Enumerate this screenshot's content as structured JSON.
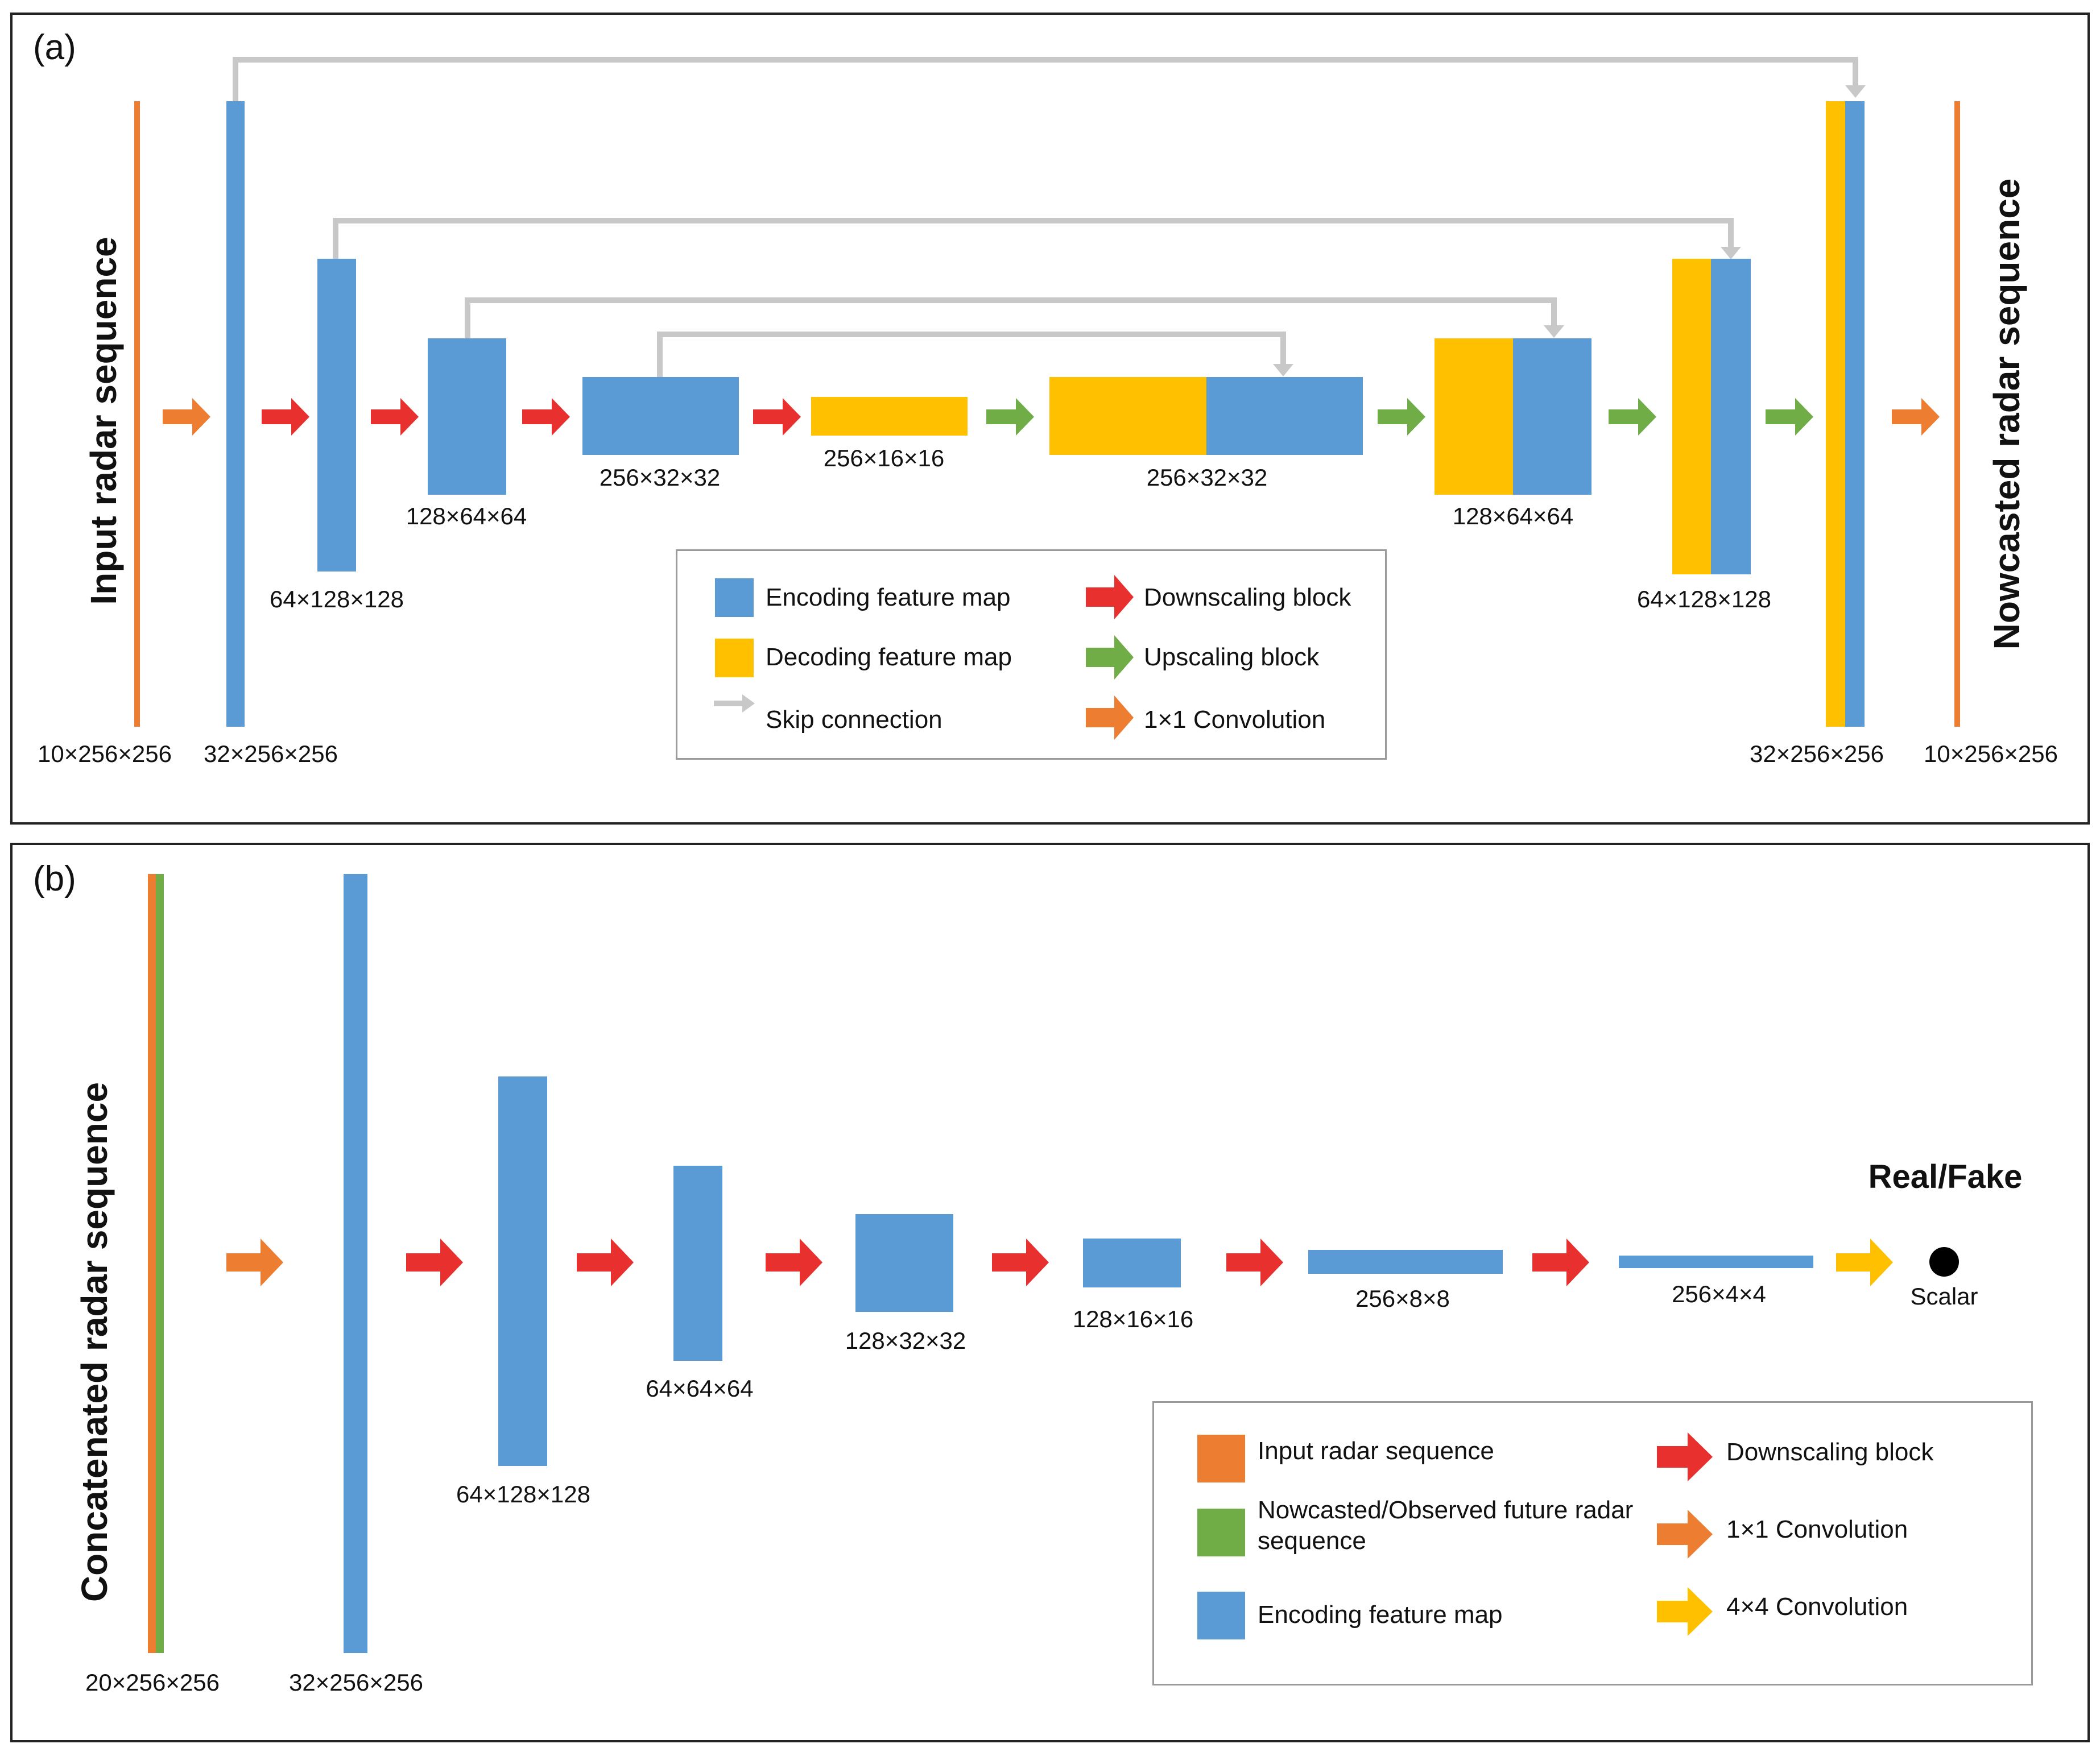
{
  "colors": {
    "encoding": "#5b9bd5",
    "decoding": "#ffc000",
    "conv1x1": "#ed7d31",
    "downscale": "#e8312f",
    "upscale": "#70ad47",
    "skip": "#c8c8c8",
    "conv4x4": "#ffc000",
    "nowcast": "#70ad47"
  },
  "panel_a": {
    "label": "(a)",
    "left_title": "Input radar sequence",
    "right_title": "Nowcasted radar sequence",
    "dims": {
      "input": "10×256×256",
      "enc1": "32×256×256",
      "enc2": "64×128×128",
      "enc3": "128×64×64",
      "enc4": "256×32×32",
      "bottleneck": "256×16×16",
      "dec4": "256×32×32",
      "dec3": "128×64×64",
      "dec2": "64×128×128",
      "dec1": "32×256×256",
      "output": "10×256×256"
    },
    "legend": {
      "encoding": "Encoding feature map",
      "decoding": "Decoding feature map",
      "skip": "Skip connection",
      "downscale": "Downscaling block",
      "upscale": "Upscaling block",
      "conv": "1×1 Convolution"
    }
  },
  "panel_b": {
    "label": "(b)",
    "left_title": "Concatenated radar sequence",
    "output_title": "Real/Fake",
    "output_label": "Scalar",
    "dims": {
      "input": "20×256×256",
      "l1": "32×256×256",
      "l2": "64×128×128",
      "l3": "64×64×64",
      "l4": "128×32×32",
      "l5": "128×16×16",
      "l6": "256×8×8",
      "l7": "256×4×4"
    },
    "legend": {
      "input": "Input radar sequence",
      "nowcast_line1": "Nowcasted/Observed future radar",
      "nowcast_line2": "sequence",
      "encoding": "Encoding feature map",
      "downscale": "Downscaling block",
      "conv1": "1×1 Convolution",
      "conv4": "4×4 Convolution"
    }
  }
}
